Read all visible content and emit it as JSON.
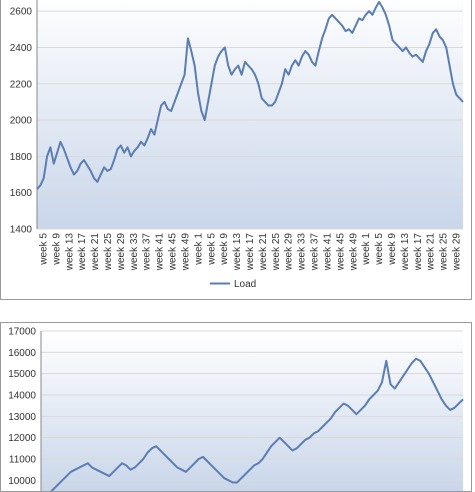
{
  "chart_data": [
    {
      "type": "area",
      "title": "",
      "xlabel": "",
      "ylabel": "",
      "ylim": [
        1400,
        2700
      ],
      "y_ticks": [
        1400,
        1600,
        1800,
        2000,
        2200,
        2400,
        2600
      ],
      "x_ticks": [
        "week 5",
        "week 9",
        "week 13",
        "week 17",
        "week 21",
        "week 25",
        "week 29",
        "week 33",
        "week 37",
        "week 41",
        "week 45",
        "week 49",
        "week 1",
        "week 5",
        "week 9",
        "week 13",
        "week 17",
        "week 21",
        "week 25",
        "week 29",
        "week 33",
        "week 37",
        "week 41",
        "week 45",
        "week 49",
        "week 1",
        "week 5",
        "week 9",
        "week 13",
        "week 17",
        "week 21",
        "week 25",
        "week 29"
      ],
      "grid": true,
      "legend": "bottom",
      "series": [
        {
          "name": "Load",
          "color": "#5a7db5",
          "values": [
            1620,
            1640,
            1680,
            1800,
            1850,
            1760,
            1820,
            1880,
            1840,
            1790,
            1740,
            1700,
            1720,
            1760,
            1780,
            1750,
            1720,
            1680,
            1660,
            1700,
            1740,
            1720,
            1730,
            1780,
            1840,
            1860,
            1820,
            1850,
            1800,
            1830,
            1850,
            1880,
            1860,
            1900,
            1950,
            1920,
            2000,
            2080,
            2100,
            2060,
            2050,
            2100,
            2150,
            2200,
            2250,
            2450,
            2380,
            2300,
            2150,
            2050,
            2000,
            2100,
            2200,
            2300,
            2350,
            2380,
            2400,
            2300,
            2250,
            2280,
            2300,
            2250,
            2320,
            2300,
            2280,
            2250,
            2200,
            2120,
            2100,
            2080,
            2080,
            2100,
            2150,
            2200,
            2280,
            2250,
            2300,
            2330,
            2300,
            2350,
            2380,
            2360,
            2320,
            2300,
            2380,
            2450,
            2500,
            2560,
            2580,
            2560,
            2540,
            2520,
            2490,
            2500,
            2480,
            2520,
            2560,
            2550,
            2580,
            2600,
            2580,
            2620,
            2650,
            2620,
            2580,
            2520,
            2440,
            2420,
            2400,
            2380,
            2400,
            2370,
            2350,
            2360,
            2340,
            2320,
            2380,
            2420,
            2480,
            2500,
            2460,
            2440,
            2400,
            2300,
            2200,
            2140,
            2120,
            2100
          ]
        }
      ]
    },
    {
      "type": "area",
      "title": "",
      "xlabel": "",
      "ylabel": "",
      "ylim": [
        9500,
        17000
      ],
      "y_ticks": [
        10000,
        11000,
        12000,
        13000,
        14000,
        15000,
        16000,
        17000
      ],
      "grid": true,
      "series": [
        {
          "name": "",
          "color": "#5a7db5",
          "values": [
            9000,
            9200,
            9400,
            9600,
            9800,
            10000,
            10200,
            10400,
            10500,
            10600,
            10700,
            10800,
            10600,
            10500,
            10400,
            10300,
            10200,
            10400,
            10600,
            10800,
            10700,
            10500,
            10600,
            10800,
            11000,
            11300,
            11500,
            11600,
            11400,
            11200,
            11000,
            10800,
            10600,
            10500,
            10400,
            10600,
            10800,
            11000,
            11100,
            10900,
            10700,
            10500,
            10300,
            10100,
            10000,
            9900,
            9900,
            10100,
            10300,
            10500,
            10700,
            10800,
            11000,
            11300,
            11600,
            11800,
            12000,
            11800,
            11600,
            11400,
            11500,
            11700,
            11900,
            12000,
            12200,
            12300,
            12500,
            12700,
            12900,
            13200,
            13400,
            13600,
            13500,
            13300,
            13100,
            13300,
            13500,
            13800,
            14000,
            14200,
            14600,
            15600,
            14500,
            14300,
            14600,
            14900,
            15200,
            15500,
            15700,
            15600,
            15300,
            15000,
            14600,
            14200,
            13800,
            13500,
            13300,
            13400,
            13600,
            13800
          ]
        }
      ]
    }
  ],
  "legend": {
    "label": "Load",
    "color": "#5a7db5"
  }
}
